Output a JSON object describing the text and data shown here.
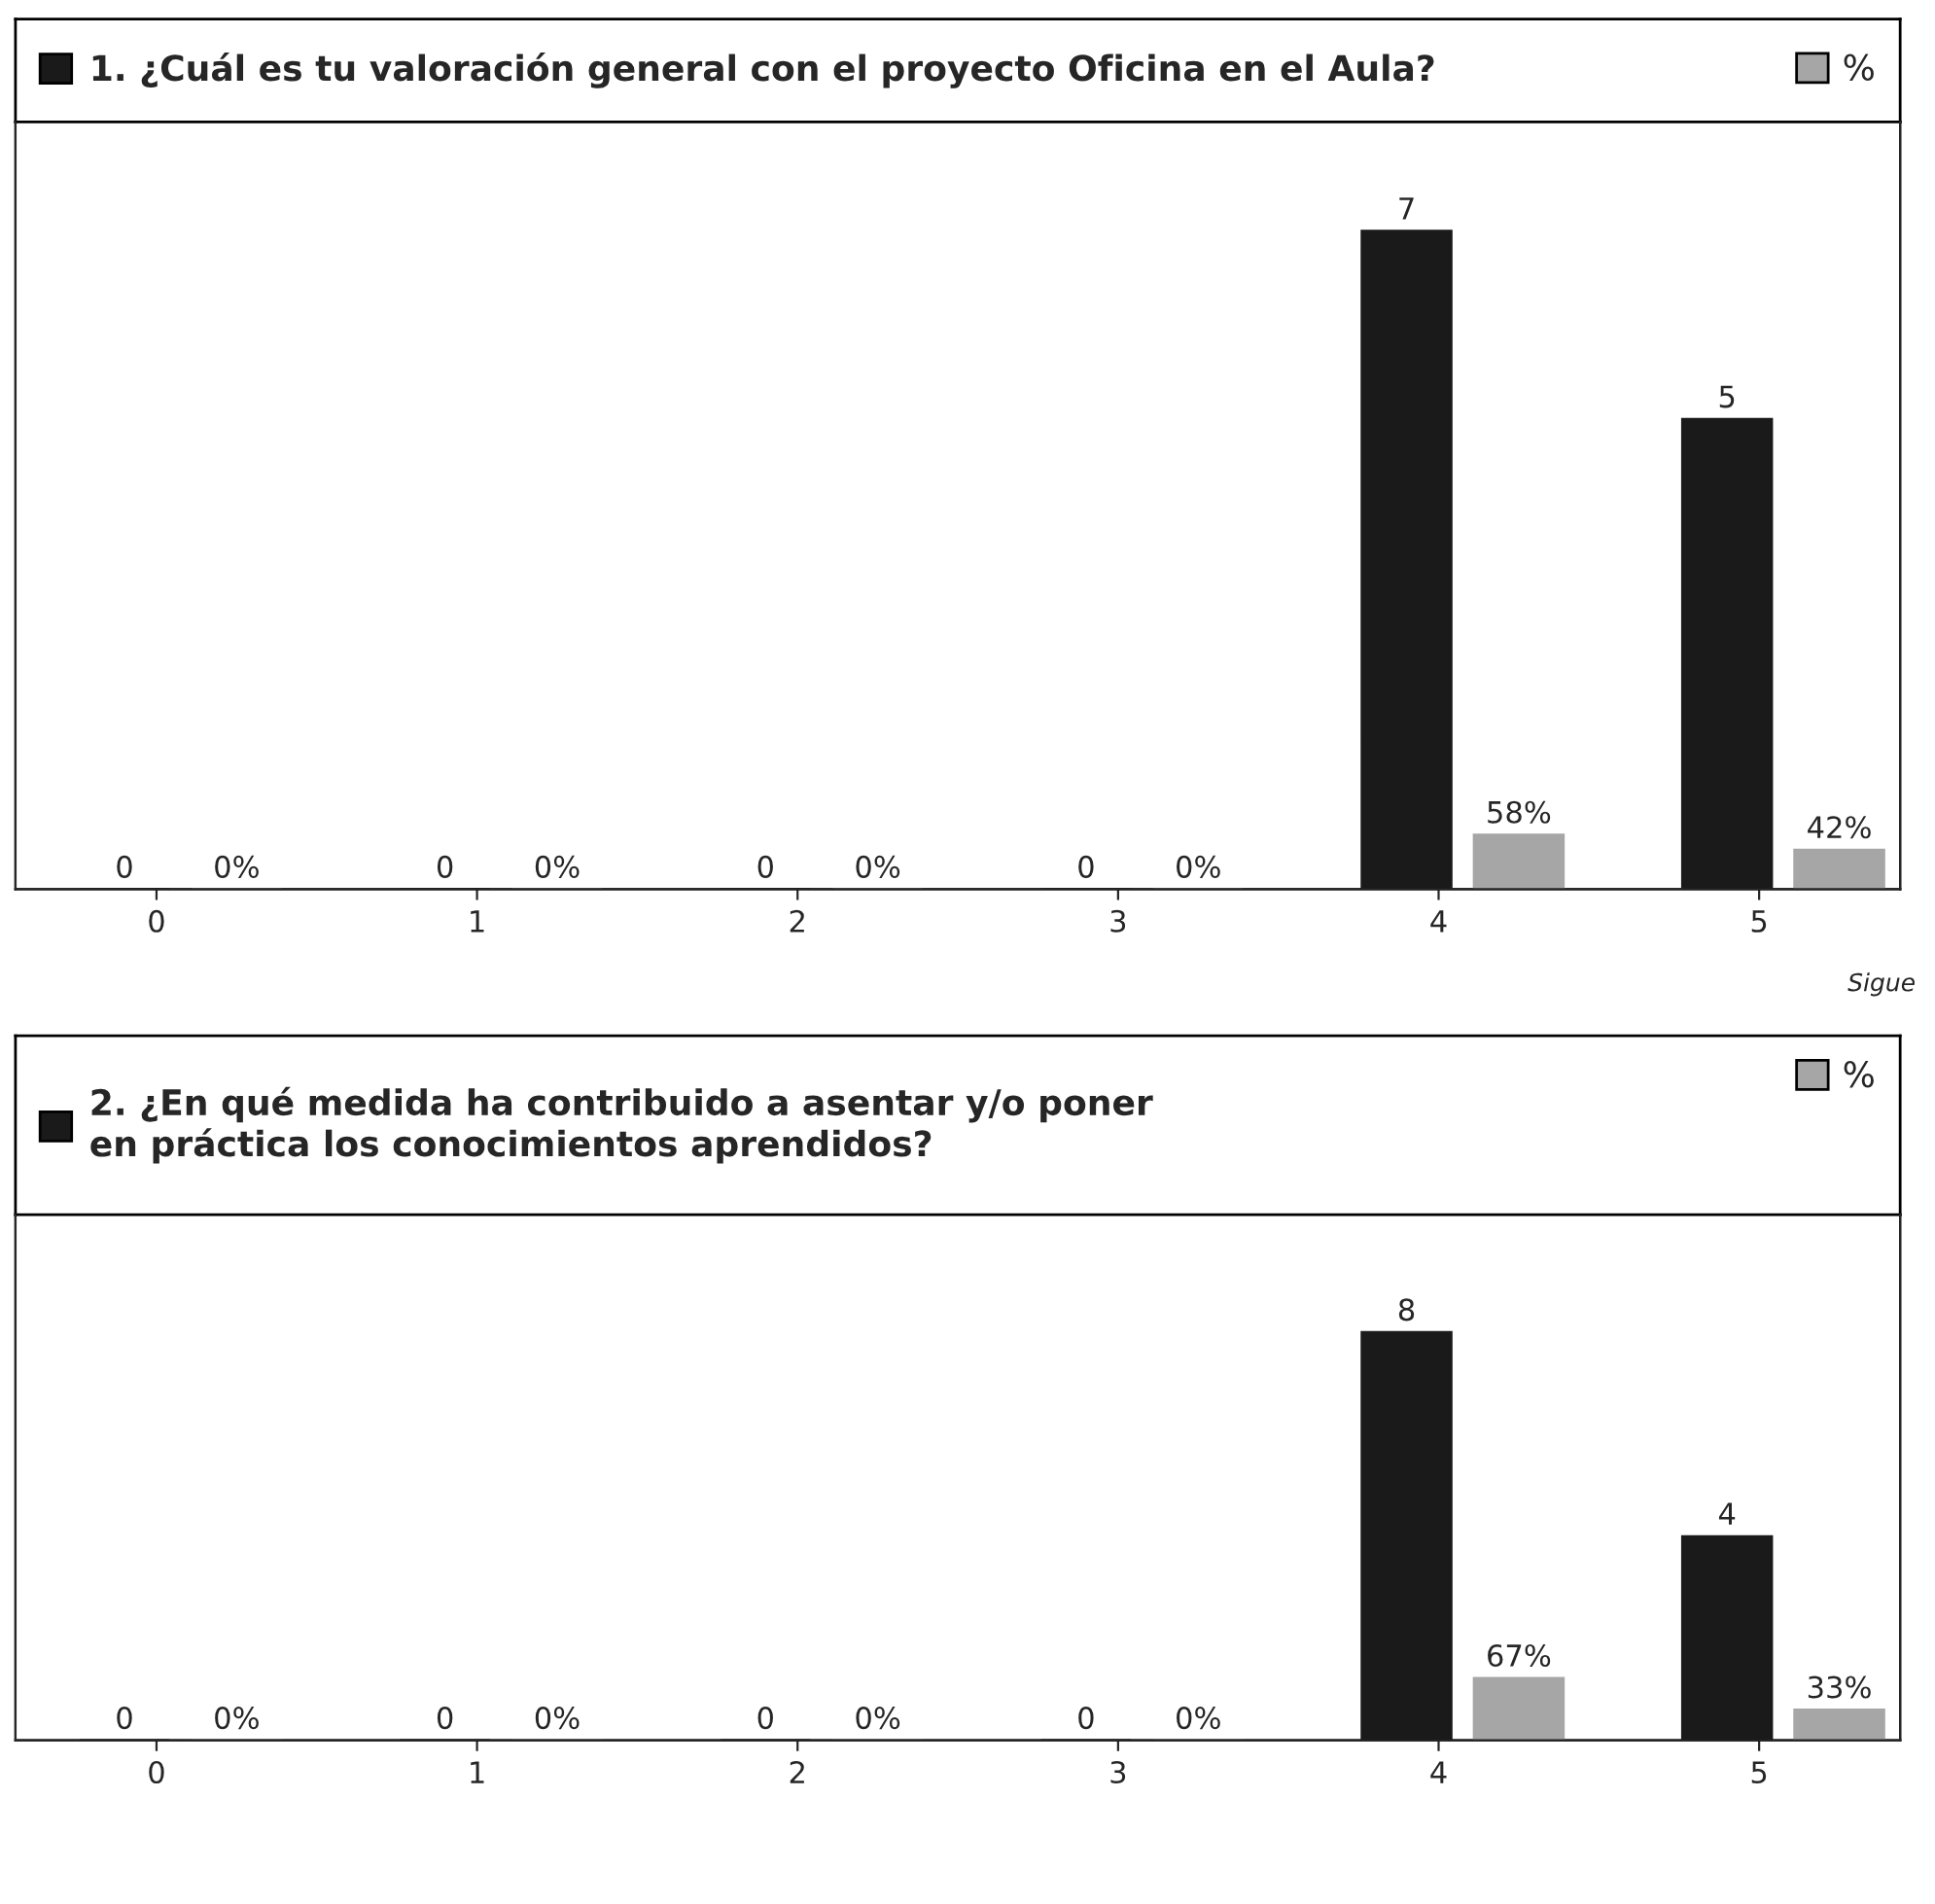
{
  "chart_data": [
    {
      "type": "bar",
      "categories": [
        "0",
        "1",
        "2",
        "3",
        "4",
        "5"
      ],
      "ylim": [
        0,
        8.16
      ],
      "y2lim": [
        0,
        816
      ],
      "tick_labels": "x",
      "legend": "top",
      "data_labels": true,
      "grid": false,
      "series": [
        {
          "name": "1. ¿Cuál es tu valoración general con el proyecto Oficina en el Aula?",
          "color": "#1a1a1a",
          "values": [
            0,
            0,
            0,
            0,
            7,
            5
          ]
        },
        {
          "name": "%",
          "color": "#a6a6a6",
          "axis": "y2",
          "values": [
            0,
            0,
            0,
            0,
            58,
            42
          ],
          "value_labels": [
            "0%",
            "0%",
            "0%",
            "0%",
            "58%",
            "42%"
          ]
        }
      ],
      "annotations": [
        "Sigue"
      ]
    },
    {
      "type": "bar",
      "categories": [
        "0",
        "1",
        "2",
        "3",
        "4",
        "5"
      ],
      "ylim": [
        0,
        10.3
      ],
      "y2lim": [
        0,
        565
      ],
      "tick_labels": "x",
      "legend": "top",
      "data_labels": true,
      "grid": false,
      "series": [
        {
          "name": "2. ¿En qué medida ha contribuido a asentar y/o poner\nen práctica los conocimientos aprendidos?",
          "color": "#1a1a1a",
          "values": [
            0,
            0,
            0,
            0,
            8,
            4
          ]
        },
        {
          "name": "%",
          "color": "#a6a6a6",
          "axis": "y2",
          "values": [
            0,
            0,
            0,
            0,
            67,
            33
          ],
          "value_labels": [
            "0%",
            "0%",
            "0%",
            "0%",
            "67%",
            "33%"
          ]
        }
      ]
    }
  ]
}
